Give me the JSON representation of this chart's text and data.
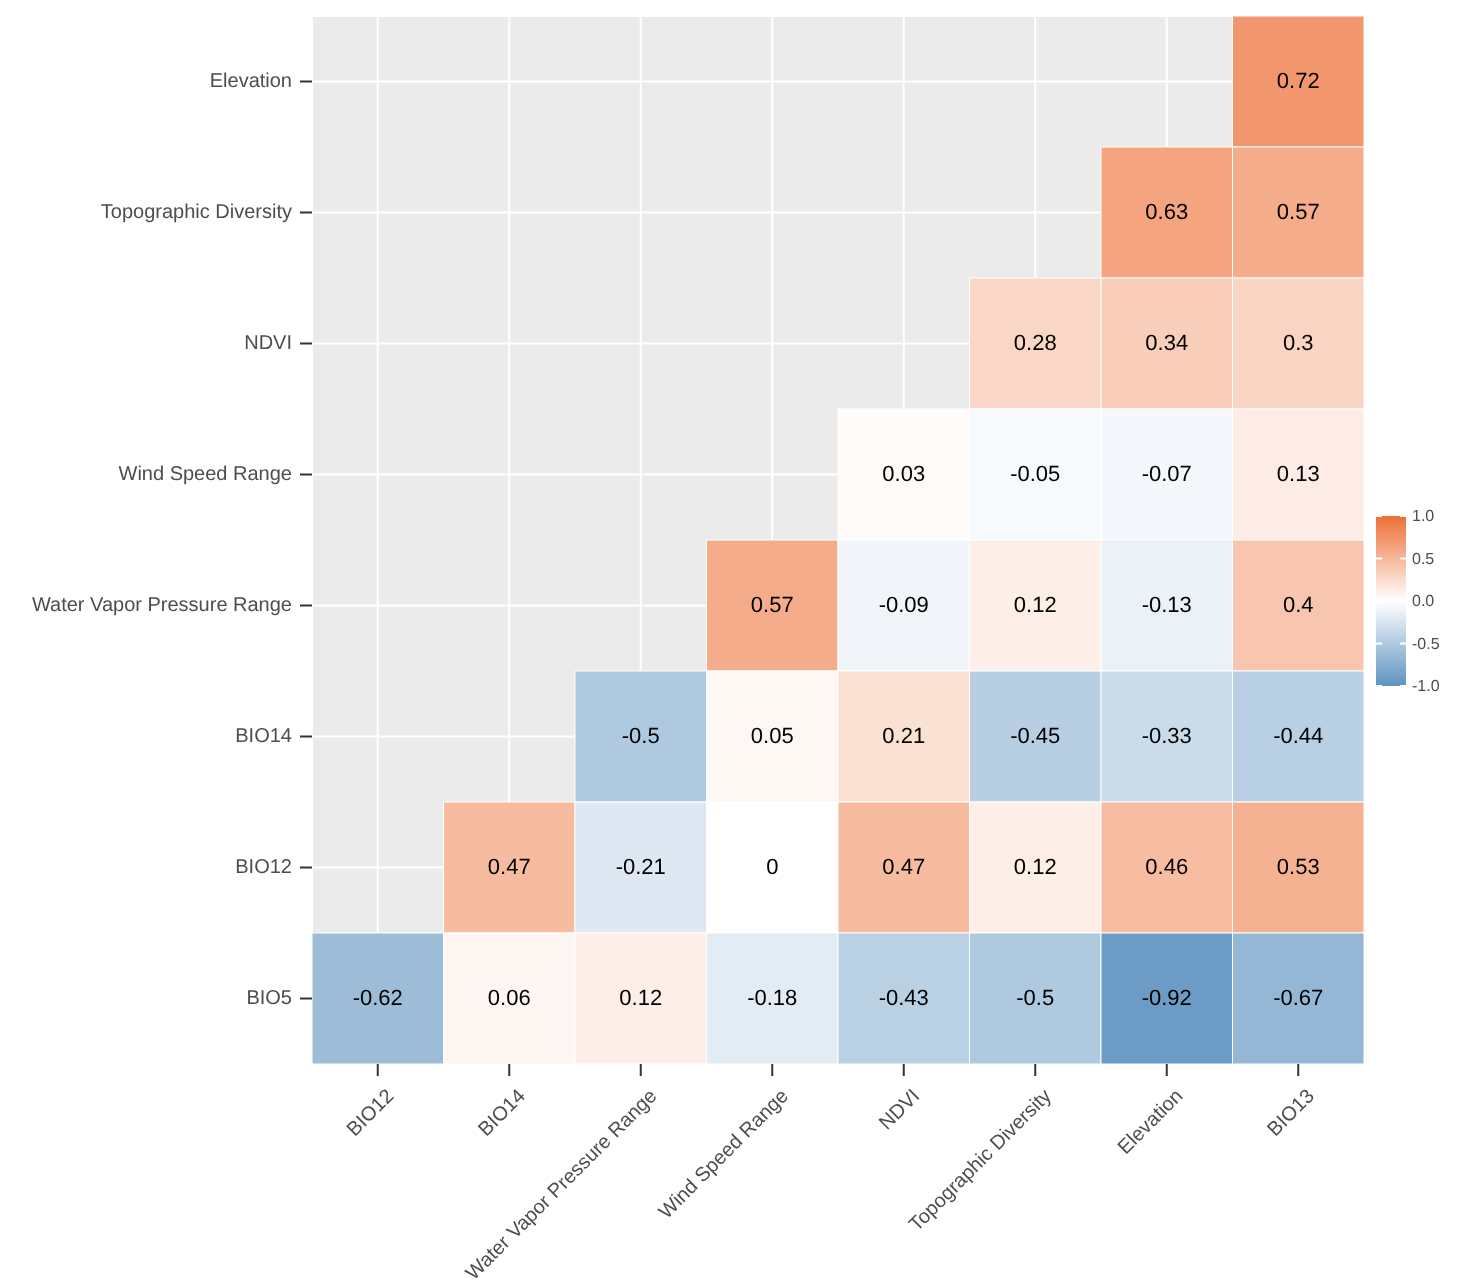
{
  "chart_data": {
    "type": "heatmap",
    "categories": [
      "BIO12",
      "BIO14",
      "Water Vapor Pressure Range",
      "Wind Speed Range",
      "NDVI",
      "Topographic Diversity",
      "Elevation",
      "BIO13"
    ],
    "y_categories": [
      "Elevation",
      "Topographic Diversity",
      "NDVI",
      "Wind Speed Range",
      "Water Vapor Pressure Range",
      "BIO14",
      "BIO12",
      "BIO5"
    ],
    "cells": [
      [
        null,
        null,
        null,
        null,
        null,
        null,
        null,
        0.72
      ],
      [
        null,
        null,
        null,
        null,
        null,
        null,
        0.63,
        0.57
      ],
      [
        null,
        null,
        null,
        null,
        null,
        0.28,
        0.34,
        0.3
      ],
      [
        null,
        null,
        null,
        null,
        0.03,
        -0.05,
        -0.07,
        0.13
      ],
      [
        null,
        null,
        null,
        0.57,
        -0.09,
        0.12,
        -0.13,
        0.4
      ],
      [
        null,
        null,
        -0.5,
        0.05,
        0.21,
        -0.45,
        -0.33,
        -0.44
      ],
      [
        null,
        0.47,
        -0.21,
        0,
        0.47,
        0.12,
        0.46,
        0.53
      ],
      [
        -0.62,
        0.06,
        0.12,
        -0.18,
        -0.43,
        -0.5,
        -0.92,
        -0.67
      ]
    ],
    "clim": [
      -1,
      1
    ],
    "cticks": [
      {
        "value": 1,
        "label": "1.0"
      },
      {
        "value": 0.5,
        "label": "0.5"
      },
      {
        "value": 0,
        "label": "0.0"
      },
      {
        "value": -0.5,
        "label": "-0.5"
      },
      {
        "value": -1,
        "label": "-1.0"
      }
    ],
    "data_labels": true,
    "grid": true
  }
}
